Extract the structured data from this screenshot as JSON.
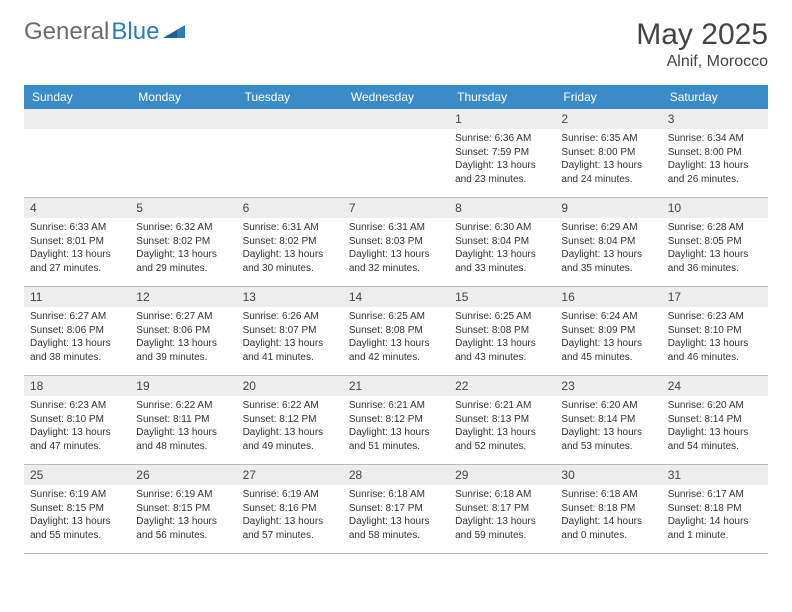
{
  "brand": {
    "part1": "General",
    "part2": "Blue"
  },
  "title": "May 2025",
  "location": "Alnif, Morocco",
  "colors": {
    "header_bg": "#3b8bc9",
    "daynum_bg": "#ededed",
    "brand_gray": "#6b6b6b",
    "brand_blue": "#2b7bbd"
  },
  "day_headers": [
    "Sunday",
    "Monday",
    "Tuesday",
    "Wednesday",
    "Thursday",
    "Friday",
    "Saturday"
  ],
  "weeks": [
    [
      null,
      null,
      null,
      null,
      {
        "n": "1",
        "sr": "Sunrise: 6:36 AM",
        "ss": "Sunset: 7:59 PM",
        "dl1": "Daylight: 13 hours",
        "dl2": "and 23 minutes."
      },
      {
        "n": "2",
        "sr": "Sunrise: 6:35 AM",
        "ss": "Sunset: 8:00 PM",
        "dl1": "Daylight: 13 hours",
        "dl2": "and 24 minutes."
      },
      {
        "n": "3",
        "sr": "Sunrise: 6:34 AM",
        "ss": "Sunset: 8:00 PM",
        "dl1": "Daylight: 13 hours",
        "dl2": "and 26 minutes."
      }
    ],
    [
      {
        "n": "4",
        "sr": "Sunrise: 6:33 AM",
        "ss": "Sunset: 8:01 PM",
        "dl1": "Daylight: 13 hours",
        "dl2": "and 27 minutes."
      },
      {
        "n": "5",
        "sr": "Sunrise: 6:32 AM",
        "ss": "Sunset: 8:02 PM",
        "dl1": "Daylight: 13 hours",
        "dl2": "and 29 minutes."
      },
      {
        "n": "6",
        "sr": "Sunrise: 6:31 AM",
        "ss": "Sunset: 8:02 PM",
        "dl1": "Daylight: 13 hours",
        "dl2": "and 30 minutes."
      },
      {
        "n": "7",
        "sr": "Sunrise: 6:31 AM",
        "ss": "Sunset: 8:03 PM",
        "dl1": "Daylight: 13 hours",
        "dl2": "and 32 minutes."
      },
      {
        "n": "8",
        "sr": "Sunrise: 6:30 AM",
        "ss": "Sunset: 8:04 PM",
        "dl1": "Daylight: 13 hours",
        "dl2": "and 33 minutes."
      },
      {
        "n": "9",
        "sr": "Sunrise: 6:29 AM",
        "ss": "Sunset: 8:04 PM",
        "dl1": "Daylight: 13 hours",
        "dl2": "and 35 minutes."
      },
      {
        "n": "10",
        "sr": "Sunrise: 6:28 AM",
        "ss": "Sunset: 8:05 PM",
        "dl1": "Daylight: 13 hours",
        "dl2": "and 36 minutes."
      }
    ],
    [
      {
        "n": "11",
        "sr": "Sunrise: 6:27 AM",
        "ss": "Sunset: 8:06 PM",
        "dl1": "Daylight: 13 hours",
        "dl2": "and 38 minutes."
      },
      {
        "n": "12",
        "sr": "Sunrise: 6:27 AM",
        "ss": "Sunset: 8:06 PM",
        "dl1": "Daylight: 13 hours",
        "dl2": "and 39 minutes."
      },
      {
        "n": "13",
        "sr": "Sunrise: 6:26 AM",
        "ss": "Sunset: 8:07 PM",
        "dl1": "Daylight: 13 hours",
        "dl2": "and 41 minutes."
      },
      {
        "n": "14",
        "sr": "Sunrise: 6:25 AM",
        "ss": "Sunset: 8:08 PM",
        "dl1": "Daylight: 13 hours",
        "dl2": "and 42 minutes."
      },
      {
        "n": "15",
        "sr": "Sunrise: 6:25 AM",
        "ss": "Sunset: 8:08 PM",
        "dl1": "Daylight: 13 hours",
        "dl2": "and 43 minutes."
      },
      {
        "n": "16",
        "sr": "Sunrise: 6:24 AM",
        "ss": "Sunset: 8:09 PM",
        "dl1": "Daylight: 13 hours",
        "dl2": "and 45 minutes."
      },
      {
        "n": "17",
        "sr": "Sunrise: 6:23 AM",
        "ss": "Sunset: 8:10 PM",
        "dl1": "Daylight: 13 hours",
        "dl2": "and 46 minutes."
      }
    ],
    [
      {
        "n": "18",
        "sr": "Sunrise: 6:23 AM",
        "ss": "Sunset: 8:10 PM",
        "dl1": "Daylight: 13 hours",
        "dl2": "and 47 minutes."
      },
      {
        "n": "19",
        "sr": "Sunrise: 6:22 AM",
        "ss": "Sunset: 8:11 PM",
        "dl1": "Daylight: 13 hours",
        "dl2": "and 48 minutes."
      },
      {
        "n": "20",
        "sr": "Sunrise: 6:22 AM",
        "ss": "Sunset: 8:12 PM",
        "dl1": "Daylight: 13 hours",
        "dl2": "and 49 minutes."
      },
      {
        "n": "21",
        "sr": "Sunrise: 6:21 AM",
        "ss": "Sunset: 8:12 PM",
        "dl1": "Daylight: 13 hours",
        "dl2": "and 51 minutes."
      },
      {
        "n": "22",
        "sr": "Sunrise: 6:21 AM",
        "ss": "Sunset: 8:13 PM",
        "dl1": "Daylight: 13 hours",
        "dl2": "and 52 minutes."
      },
      {
        "n": "23",
        "sr": "Sunrise: 6:20 AM",
        "ss": "Sunset: 8:14 PM",
        "dl1": "Daylight: 13 hours",
        "dl2": "and 53 minutes."
      },
      {
        "n": "24",
        "sr": "Sunrise: 6:20 AM",
        "ss": "Sunset: 8:14 PM",
        "dl1": "Daylight: 13 hours",
        "dl2": "and 54 minutes."
      }
    ],
    [
      {
        "n": "25",
        "sr": "Sunrise: 6:19 AM",
        "ss": "Sunset: 8:15 PM",
        "dl1": "Daylight: 13 hours",
        "dl2": "and 55 minutes."
      },
      {
        "n": "26",
        "sr": "Sunrise: 6:19 AM",
        "ss": "Sunset: 8:15 PM",
        "dl1": "Daylight: 13 hours",
        "dl2": "and 56 minutes."
      },
      {
        "n": "27",
        "sr": "Sunrise: 6:19 AM",
        "ss": "Sunset: 8:16 PM",
        "dl1": "Daylight: 13 hours",
        "dl2": "and 57 minutes."
      },
      {
        "n": "28",
        "sr": "Sunrise: 6:18 AM",
        "ss": "Sunset: 8:17 PM",
        "dl1": "Daylight: 13 hours",
        "dl2": "and 58 minutes."
      },
      {
        "n": "29",
        "sr": "Sunrise: 6:18 AM",
        "ss": "Sunset: 8:17 PM",
        "dl1": "Daylight: 13 hours",
        "dl2": "and 59 minutes."
      },
      {
        "n": "30",
        "sr": "Sunrise: 6:18 AM",
        "ss": "Sunset: 8:18 PM",
        "dl1": "Daylight: 14 hours",
        "dl2": "and 0 minutes."
      },
      {
        "n": "31",
        "sr": "Sunrise: 6:17 AM",
        "ss": "Sunset: 8:18 PM",
        "dl1": "Daylight: 14 hours",
        "dl2": "and 1 minute."
      }
    ]
  ]
}
